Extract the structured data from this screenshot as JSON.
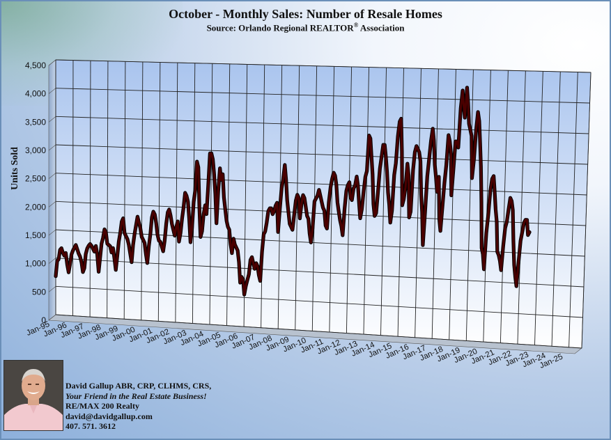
{
  "header": {
    "title": "October - Monthly Sales: Number of  Resale Homes",
    "source_prefix": "Source: Orlando Regional REALTOR",
    "source_reg": "®",
    "source_suffix": " Association"
  },
  "chart_data": {
    "type": "line",
    "title": "October - Monthly Sales: Number of  Resale Homes",
    "subtitle": "Source: Orlando Regional REALTOR® Association",
    "xlabel": "",
    "ylabel": "Units Sold",
    "ylim": [
      0,
      4500
    ],
    "yticks": [
      0,
      500,
      1000,
      1500,
      2000,
      2500,
      3000,
      3500,
      4000,
      4500
    ],
    "ytick_labels": [
      "0",
      "500",
      "1,000",
      "1,500",
      "2,000",
      "2,500",
      "3,000",
      "3,500",
      "4,000",
      "4,500"
    ],
    "xtick_labels": [
      "Jan-95",
      "Jan-96",
      "Jan-97",
      "Jan-98",
      "Jan-99",
      "Jan-00",
      "Jan-01",
      "Jan-02",
      "Jan-03",
      "Jan-04",
      "Jan-05",
      "Jan-06",
      "Jan-07",
      "Jan-08",
      "Jan-09",
      "Jan-10",
      "Jan-11",
      "Jan-12",
      "Jan-13",
      "Jan-14",
      "Jan-15",
      "Jan-16",
      "Jan-17",
      "Jan-18",
      "Jan-19",
      "Jan-20",
      "Jan-21",
      "Jan-22",
      "Jan-23",
      "Jan-24",
      "Jan-25"
    ],
    "grid": true,
    "legend": "none",
    "line_color": "#4a0000",
    "x_start": "Jan-95",
    "x_end": "Oct-25",
    "series": [
      {
        "values": [
          680,
          950,
          980,
          1150,
          1180,
          1100,
          1050,
          1100,
          900,
          760,
          900,
          1080,
          1150,
          1200,
          1250,
          1180,
          1100,
          1050,
          950,
          780,
          850,
          1100,
          1200,
          1250,
          1280,
          1250,
          1200,
          1150,
          1250,
          1100,
          800,
          1050,
          1300,
          1400,
          1550,
          1500,
          1300,
          1280,
          1260,
          1150,
          1230,
          1050,
          850,
          1100,
          1350,
          1500,
          1700,
          1760,
          1500,
          1450,
          1400,
          1300,
          1150,
          1000,
          1300,
          1500,
          1650,
          1800,
          1700,
          1600,
          1450,
          1400,
          1350,
          1150,
          1000,
          1300,
          1500,
          1800,
          1900,
          1850,
          1700,
          1500,
          1400,
          1380,
          1300,
          1220,
          1400,
          1700,
          1900,
          1950,
          1850,
          1700,
          1600,
          1500,
          1650,
          1750,
          1400,
          1550,
          1800,
          2000,
          2250,
          2200,
          2100,
          1800,
          1400,
          1650,
          2100,
          2300,
          2800,
          2700,
          2000,
          1500,
          1600,
          1900,
          2050,
          1900,
          2400,
          2950,
          2950,
          2850,
          2600,
          2250,
          1750,
          2300,
          2700,
          2500,
          2600,
          2200,
          2000,
          1800,
          1700,
          1650,
          1400,
          1250,
          1500,
          1400,
          1350,
          1300,
          1100,
          750,
          850,
          800,
          550,
          700,
          800,
          900,
          1150,
          1200,
          1100,
          1000,
          1100,
          1050,
          900,
          800,
          1300,
          1600,
          1650,
          1800,
          2000,
          2050,
          2050,
          1950,
          2000,
          2100,
          2150,
          1650,
          2050,
          2400,
          2550,
          2800,
          2550,
          2200,
          2000,
          1800,
          1750,
          1700,
          1950,
          2200,
          2300,
          2250,
          1900,
          2150,
          2300,
          2250,
          2100,
          1950,
          1900,
          1650,
          1500,
          1750,
          2200,
          2250,
          2300,
          2400,
          2300,
          2200,
          2100,
          2050,
          1800,
          1750,
          2200,
          2450,
          2600,
          2700,
          2650,
          2500,
          2200,
          2050,
          1900,
          1800,
          1650,
          2100,
          2400,
          2500,
          2550,
          2300,
          2250,
          2450,
          2500,
          2650,
          2500,
          2200,
          1950,
          2100,
          2400,
          2650,
          2750,
          3350,
          3300,
          3000,
          2700,
          2200,
          2000,
          2050,
          2400,
          2800,
          3000,
          3200,
          3200,
          3000,
          2750,
          2400,
          2200,
          1900,
          2100,
          2700,
          2900,
          3350,
          3600,
          3650,
          3100,
          2200,
          2300,
          2500,
          2900,
          2700,
          2000,
          2100,
          2800,
          3100,
          3200,
          3150,
          3100,
          2950,
          2400,
          2100,
          1550,
          2100,
          2700,
          3000,
          3300,
          3500,
          3300,
          2900,
          2700,
          2450,
          2700,
          2000,
          1800,
          2200,
          2600,
          2900,
          3400,
          3300,
          3100,
          2400,
          2850,
          3300,
          3300,
          3200,
          3850,
          4150,
          3900,
          3700,
          4200,
          3950,
          3600,
          3500,
          3400,
          2700,
          3000,
          3500,
          3800,
          3650,
          3300,
          2900,
          2300,
          1550,
          1450,
          1200,
          1800,
          2100,
          2500,
          2700,
          2750,
          2500,
          2200,
          2000,
          1500,
          1450,
          1350,
          1200,
          1600,
          1900,
          2000,
          2200,
          2400,
          2350,
          2200,
          1700,
          1300,
          1100,
          950,
          1350,
          1700,
          1850,
          2000,
          2050,
          2050,
          1800,
          1850
        ]
      }
    ]
  },
  "contact": {
    "line1": "David Gallup  ABR, CRP, CLHMS, CRS,",
    "line2": "Your Friend in the Real Estate Business!",
    "line3": "RE/MAX 200 Realty",
    "line4": "david@davidgallup.com",
    "line5": "407. 571. 3612"
  }
}
